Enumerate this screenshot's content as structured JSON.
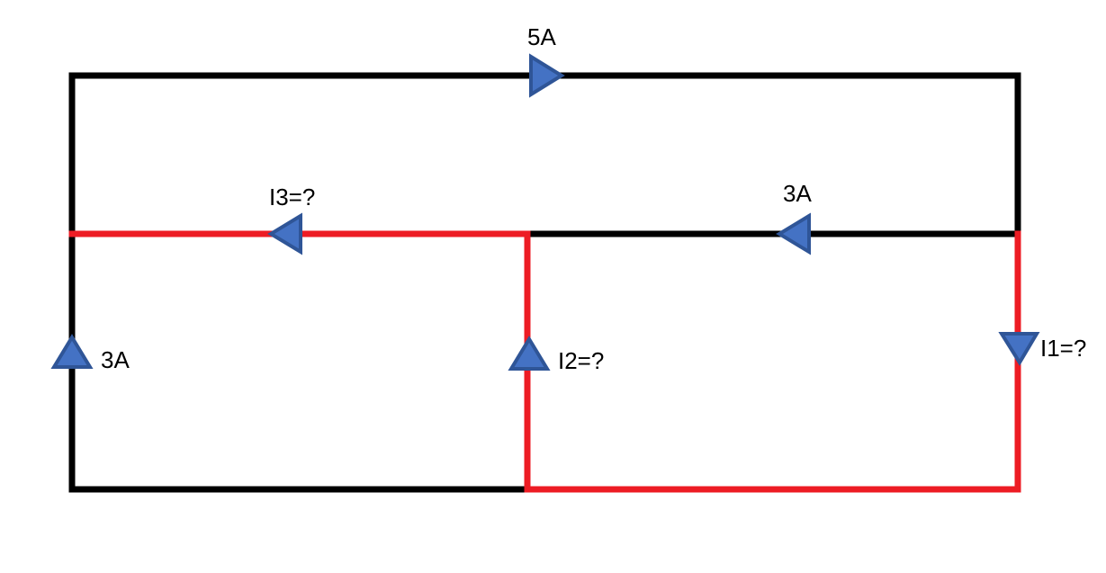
{
  "colors": {
    "wire": "#000000",
    "highlight_wire": "#ED1C24",
    "arrow_fill": "#4472C4",
    "arrow_stroke": "#2F5597"
  },
  "labels": {
    "top_current": "5A",
    "middle_right_current": "3A",
    "middle_left_current": "I3=?",
    "left_current": "3A",
    "center_current": "I2=?",
    "right_current": "I1=?"
  },
  "arrows": {
    "top": "arrow-right-icon",
    "middle_right": "arrow-left-icon",
    "middle_left": "arrow-left-icon",
    "left": "arrow-up-icon",
    "center": "arrow-up-icon",
    "right": "arrow-down-icon"
  }
}
